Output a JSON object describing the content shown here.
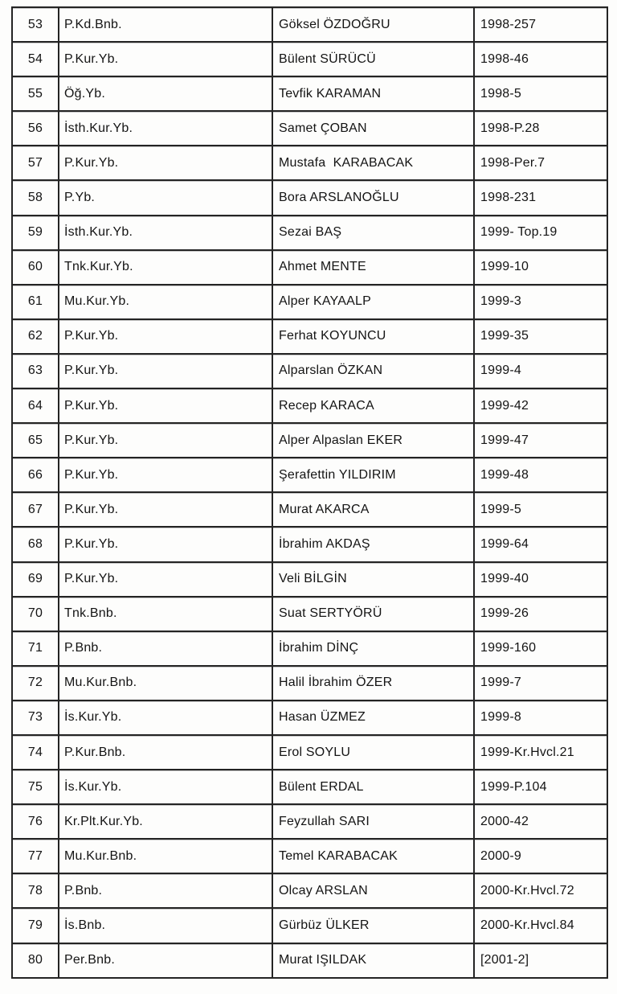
{
  "page": {
    "background_color": "#fdfdfc",
    "text_color": "#141414",
    "border_color": "#242424"
  },
  "table": {
    "rows": [
      {
        "no": "53",
        "rank": "P.Kd.Bnb.",
        "name": "Göksel ÖZDOĞRU",
        "code": "1998-257"
      },
      {
        "no": "54",
        "rank": "P.Kur.Yb.",
        "name": "Bülent SÜRÜCÜ",
        "code": "1998-46"
      },
      {
        "no": "55",
        "rank": "Öğ.Yb.",
        "name": "Tevfik KARAMAN",
        "code": "1998-5"
      },
      {
        "no": "56",
        "rank": "İsth.Kur.Yb.",
        "name": "Samet ÇOBAN",
        "code": "1998-P.28"
      },
      {
        "no": "57",
        "rank": "P.Kur.Yb.",
        "name": "Mustafa  KARABACAK",
        "code": "1998-Per.7"
      },
      {
        "no": "58",
        "rank": "P.Yb.",
        "name": "Bora ARSLANOĞLU",
        "code": "1998-231"
      },
      {
        "no": "59",
        "rank": "İsth.Kur.Yb.",
        "name": "Sezai BAŞ",
        "code": "1999- Top.19"
      },
      {
        "no": "60",
        "rank": "Tnk.Kur.Yb.",
        "name": "Ahmet MENTE",
        "code": "1999-10"
      },
      {
        "no": "61",
        "rank": "Mu.Kur.Yb.",
        "name": "Alper KAYAALP",
        "code": "1999-3"
      },
      {
        "no": "62",
        "rank": "P.Kur.Yb.",
        "name": "Ferhat KOYUNCU",
        "code": "1999-35"
      },
      {
        "no": "63",
        "rank": "P.Kur.Yb.",
        "name": "Alparslan ÖZKAN",
        "code": "1999-4"
      },
      {
        "no": "64",
        "rank": "P.Kur.Yb.",
        "name": "Recep KARACA",
        "code": "1999-42"
      },
      {
        "no": "65",
        "rank": "P.Kur.Yb.",
        "name": "Alper Alpaslan EKER",
        "code": "1999-47"
      },
      {
        "no": "66",
        "rank": "P.Kur.Yb.",
        "name": "Şerafettin YILDIRIM",
        "code": "1999-48"
      },
      {
        "no": "67",
        "rank": "P.Kur.Yb.",
        "name": "Murat AKARCA",
        "code": "1999-5"
      },
      {
        "no": "68",
        "rank": "P.Kur.Yb.",
        "name": "İbrahim AKDAŞ",
        "code": "1999-64"
      },
      {
        "no": "69",
        "rank": "P.Kur.Yb.",
        "name": "Veli BİLGİN",
        "code": "1999-40"
      },
      {
        "no": "70",
        "rank": "Tnk.Bnb.",
        "name": "Suat SERTYÖRÜ",
        "code": "1999-26"
      },
      {
        "no": "71",
        "rank": "P.Bnb.",
        "name": "İbrahim DİNÇ",
        "code": "1999-160"
      },
      {
        "no": "72",
        "rank": "Mu.Kur.Bnb.",
        "name": "Halil İbrahim ÖZER",
        "code": "1999-7"
      },
      {
        "no": "73",
        "rank": "İs.Kur.Yb.",
        "name": "Hasan ÜZMEZ",
        "code": "1999-8"
      },
      {
        "no": "74",
        "rank": "P.Kur.Bnb.",
        "name": "Erol SOYLU",
        "code": "1999-Kr.Hvcl.21"
      },
      {
        "no": "75",
        "rank": "İs.Kur.Yb.",
        "name": "Bülent ERDAL",
        "code": "1999-P.104"
      },
      {
        "no": "76",
        "rank": "Kr.Plt.Kur.Yb.",
        "name": "Feyzullah SARI",
        "code": "2000-42"
      },
      {
        "no": "77",
        "rank": "Mu.Kur.Bnb.",
        "name": "Temel KARABACAK",
        "code": "2000-9"
      },
      {
        "no": "78",
        "rank": "P.Bnb.",
        "name": "Olcay ARSLAN",
        "code": "2000-Kr.Hvcl.72"
      },
      {
        "no": "79",
        "rank": "İs.Bnb.",
        "name": "Gürbüz ÜLKER",
        "code": "2000-Kr.Hvcl.84"
      },
      {
        "no": "80",
        "rank": "Per.Bnb.",
        "name": "Murat IŞILDAK",
        "code": "[2001-2]"
      }
    ]
  }
}
